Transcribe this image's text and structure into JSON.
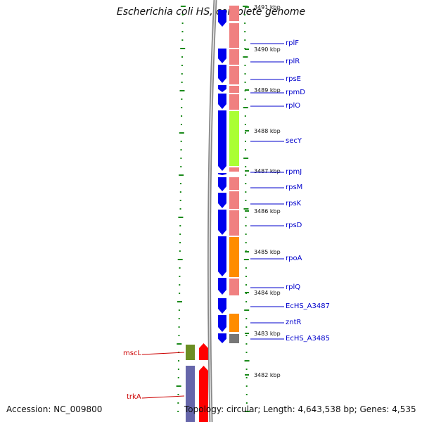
{
  "title": "Escherichia coli HS, complete genome",
  "footer": {
    "accession": "Accession: NC_009800",
    "topology": "Topology: circular; Length: 4,643,538 bp; Genes: 4,535"
  },
  "colors": {
    "forward_gene": "#0000ee",
    "reverse_gene": "#ff0000",
    "label_forward": "#0000cc",
    "label_reverse": "#cc0000",
    "backbone": "#888888",
    "dots": "#1a8a1a",
    "cog_pink": "#f08080",
    "cog_green": "#aaff33",
    "cog_orange": "#ff8c00",
    "cog_grey": "#777777",
    "cog_olive": "#6b8e23",
    "cog_slate": "#6666aa"
  },
  "ticks": [
    "3491 kbp",
    "3490 kbp",
    "3489 kbp",
    "3488 kbp",
    "3487 kbp",
    "3486 kbp",
    "3485 kbp",
    "3484 kbp",
    "3483 kbp",
    "3482 kbp"
  ],
  "forward_genes": [
    "rplF",
    "rplR",
    "rpsE",
    "rpmD",
    "rplO",
    "secY",
    "rpmJ",
    "rpsM",
    "rpsK",
    "rpsD",
    "rpoA",
    "rplQ",
    "EcHS_A3487",
    "zntR",
    "EcHS_A3485"
  ],
  "reverse_genes": [
    "mscL",
    "trkA"
  ]
}
